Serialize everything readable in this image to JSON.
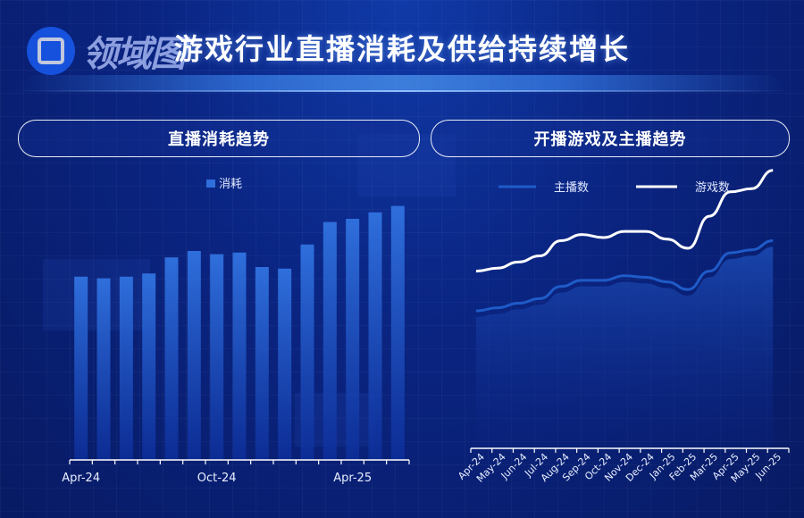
{
  "page": {
    "logo_text": "领域图",
    "title": "游戏行业直播消耗及供给持续增长"
  },
  "panels": {
    "left_title": "直播消耗趋势",
    "right_title": "开播游戏及主播趋势"
  },
  "colors": {
    "bar_top": "#2f6fdc",
    "bar_bottom": "#0d2e9a",
    "anchor_line": "#1f5bc8",
    "game_line": "#ffffff"
  },
  "chart_data": [
    {
      "type": "bar",
      "title": "",
      "legend": [
        "消耗"
      ],
      "legend_position": "top-center",
      "x_tick_labels": [
        "Apr-24",
        "Oct-24",
        "Apr-25"
      ],
      "categories": [
        "Apr-24",
        "May-24",
        "Jun-24",
        "Jul-24",
        "Aug-24",
        "Sep-24",
        "Oct-24",
        "Nov-24",
        "Dec-24",
        "Jan-25",
        "Feb-25",
        "Mar-25",
        "Apr-25",
        "May-25",
        "Jun-25"
      ],
      "series": [
        {
          "name": "消耗",
          "values": [
            57,
            56.5,
            57,
            58,
            63,
            65,
            64,
            64.5,
            60,
            59.5,
            67,
            74,
            75,
            77,
            79
          ]
        }
      ],
      "ylim": [
        0,
        100
      ],
      "grid": false,
      "y_axis_visible": false
    },
    {
      "type": "line",
      "title": "",
      "legend_position": "top-center",
      "categories": [
        "Apr-24",
        "May-24",
        "Jun-24",
        "Jul-24",
        "Aug-24",
        "Sep-24",
        "Oct-24",
        "Nov-24",
        "Dec-24",
        "Jan-25",
        "Feb-25",
        "Mar-25",
        "Apr-25",
        "May-25",
        "Jun-25"
      ],
      "series": [
        {
          "name": "主播数",
          "values": [
            45,
            46,
            47.5,
            49,
            53,
            55,
            55,
            56.5,
            56,
            54.5,
            52,
            58,
            64,
            65,
            68
          ],
          "area_fill": true
        },
        {
          "name": "游戏数",
          "values": [
            58,
            59,
            61,
            63,
            68,
            70,
            69,
            71,
            71,
            68.5,
            65.5,
            76,
            84,
            85,
            91
          ]
        }
      ],
      "ylim": [
        0,
        100
      ],
      "grid": false,
      "y_axis_visible": false
    }
  ]
}
